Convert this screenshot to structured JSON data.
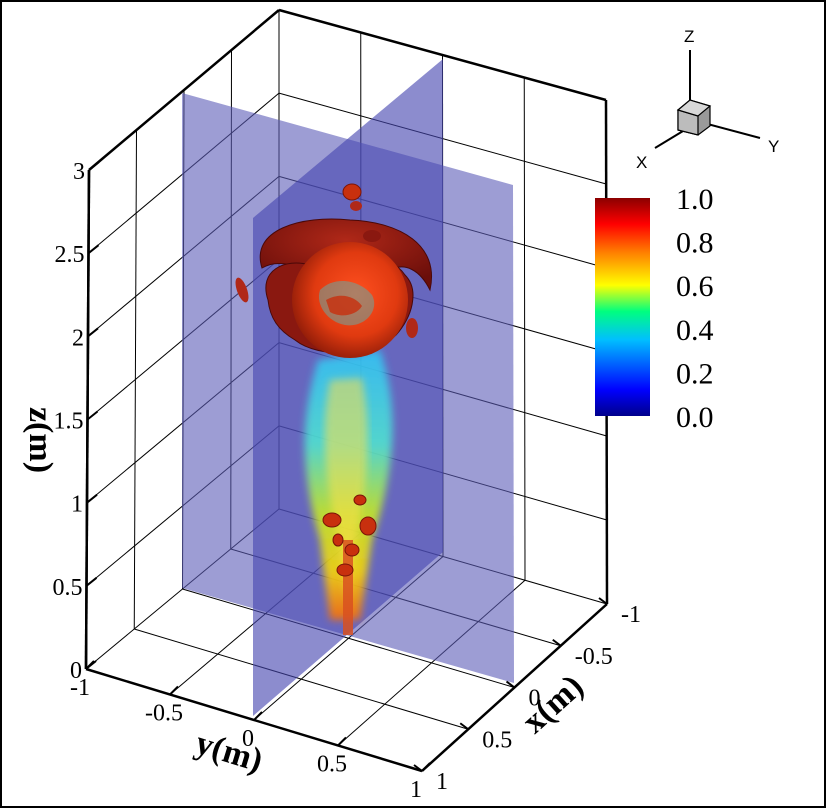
{
  "chart_data": {
    "type": "3d-isosurface-volume",
    "axes": {
      "z": {
        "label": "z(m)",
        "range": [
          0,
          3
        ],
        "ticks": [
          "0",
          "0.5",
          "1",
          "1.5",
          "2",
          "2.5",
          "3"
        ]
      },
      "y": {
        "label": "y(m)",
        "range": [
          -1,
          1
        ],
        "ticks": [
          "-1",
          "-0.5",
          "0",
          "0.5",
          "1"
        ]
      },
      "x": {
        "label": "x(m)",
        "range": [
          -1,
          1
        ],
        "ticks": [
          "-1",
          "-0.5",
          "0",
          "0.5",
          "1"
        ]
      }
    },
    "colorbar": {
      "range": [
        0,
        1
      ],
      "labels": [
        "1.0",
        "0.8",
        "0.6",
        "0.4",
        "0.2",
        "0.0"
      ],
      "colors": [
        "#00008b",
        "#0000ff",
        "#00bfff",
        "#00ff7f",
        "#ffff00",
        "#ff7f00",
        "#ff0000",
        "#8b0000"
      ]
    },
    "orientation_triad": {
      "labels": [
        "Z",
        "Y",
        "X"
      ]
    },
    "slice_planes": 2,
    "plane_color": "#5c5cb8",
    "isosurface_color": "#c8300e",
    "grid": true
  }
}
